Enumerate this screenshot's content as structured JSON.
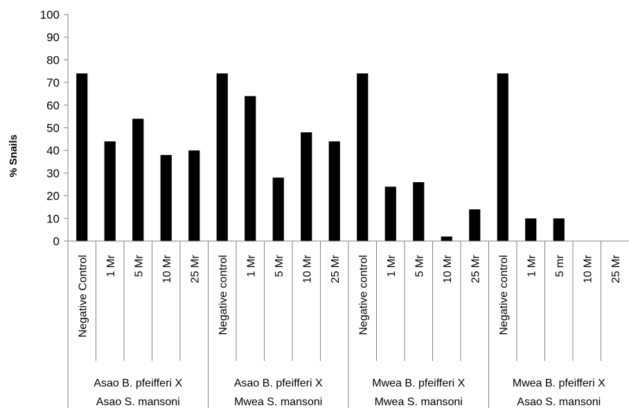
{
  "chart_data": {
    "type": "bar",
    "ylabel": "% Snails",
    "ylim": [
      0,
      100
    ],
    "ytick_step": 10,
    "bar_color": "#000000",
    "groups": [
      {
        "label_line1": "Asao B. pfeifferi X",
        "label_line2": "Asao S. mansoni",
        "categories": [
          "Negative Control",
          "1 Mr",
          "5 Mr",
          "10 Mr",
          "25 Mr"
        ],
        "values": [
          74,
          44,
          54,
          38,
          40
        ]
      },
      {
        "label_line1": "Asao B. pfeifferi X",
        "label_line2": "Mwea S. mansoni",
        "categories": [
          "Negative control",
          "1 Mr",
          "5 Mr",
          "10 Mr",
          "25 Mr"
        ],
        "values": [
          74,
          64,
          28,
          48,
          44
        ]
      },
      {
        "label_line1": "Mwea  B. pfeifferi X",
        "label_line2": "Mwea S. mansoni",
        "categories": [
          "Negative control",
          "1 Mr",
          "5 Mr",
          "10 Mr",
          "25 Mr"
        ],
        "values": [
          74,
          24,
          26,
          2,
          14
        ]
      },
      {
        "label_line1": "Mwea B. pfeifferi X",
        "label_line2": "Asao  S. mansoni",
        "categories": [
          "Negative  control",
          "1 Mr",
          "5  mr",
          "10 Mr",
          "25 Mr"
        ],
        "values": [
          74,
          10,
          10,
          0,
          0
        ]
      }
    ]
  }
}
